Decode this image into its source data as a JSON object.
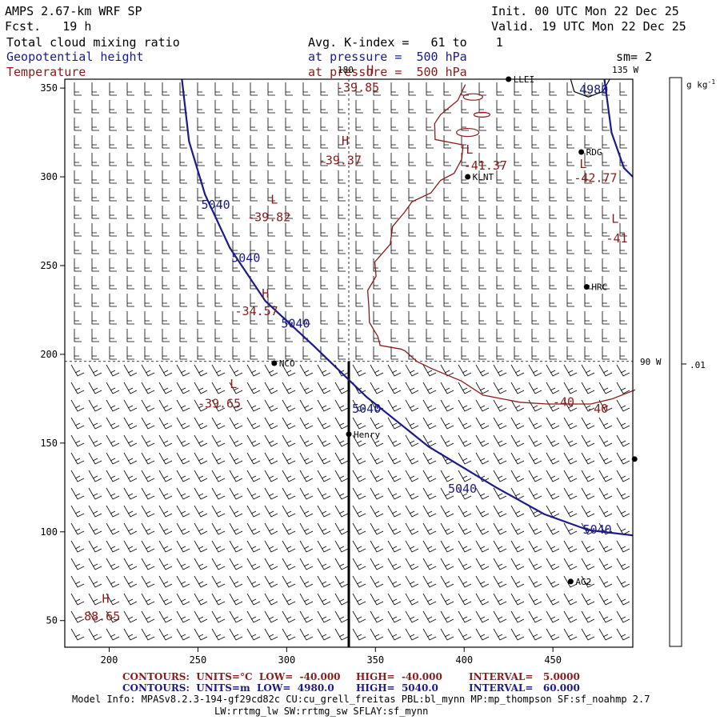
{
  "header": {
    "model_title": "AMPS 2.67-km WRF SP",
    "forecast": "Fcst.   19 h",
    "init": "Init. 00 UTC Mon 22 Dec 25",
    "valid": "Valid. 19 UTC Mon 22 Dec 25",
    "field1": "Total cloud mixing ratio",
    "field2": "Geopotential height",
    "field3": "Temperature",
    "avg_k": "Avg. K-index =   61 to    1",
    "pressure1": "at pressure =  500 hPa",
    "pressure2": "at pressure =  500 hPa",
    "sm": "sm= 2"
  },
  "colors": {
    "blue": "#1a1a8c",
    "red": "#8b1a1a",
    "black": "#000000"
  },
  "map": {
    "x_ticks": [
      "200",
      "250",
      "300",
      "350",
      "400",
      "450"
    ],
    "y_ticks": [
      "350",
      "300",
      "250",
      "200",
      "150",
      "100",
      "50"
    ],
    "lon_labels": {
      "top": "180",
      "right_top": "135 W",
      "right_mid": "90 W"
    },
    "stations": [
      {
        "name": "LLEI",
        "x": 425,
        "y": 355
      },
      {
        "name": "RDG",
        "x": 466,
        "y": 314
      },
      {
        "name": "KLNT",
        "x": 402,
        "y": 300
      },
      {
        "name": "HRC",
        "x": 469,
        "y": 238
      },
      {
        "name": "NCO",
        "x": 293,
        "y": 195
      },
      {
        "name": "Henry",
        "x": 335,
        "y": 155
      },
      {
        "name": "AG2",
        "x": 460,
        "y": 72
      },
      {
        "name": "",
        "x": 496,
        "y": 141
      }
    ],
    "height_labels": [
      {
        "text": "5040",
        "x": 260,
        "y": 282
      },
      {
        "text": "5040",
        "x": 277,
        "y": 252
      },
      {
        "text": "5040",
        "x": 305,
        "y": 215
      },
      {
        "text": "5040",
        "x": 345,
        "y": 167
      },
      {
        "text": "5040",
        "x": 399,
        "y": 122
      },
      {
        "text": "5040",
        "x": 475,
        "y": 99
      },
      {
        "text": "4980",
        "x": 473,
        "y": 347
      }
    ],
    "temp_labels": [
      {
        "text": "-39.85",
        "x": 340,
        "y": 348
      },
      {
        "text": "-39.37",
        "x": 330,
        "y": 307
      },
      {
        "text": "-41.37",
        "x": 412,
        "y": 304
      },
      {
        "text": "-42.77",
        "x": 474,
        "y": 297
      },
      {
        "text": "-39.82",
        "x": 290,
        "y": 275
      },
      {
        "text": "-41",
        "x": 486,
        "y": 263
      },
      {
        "text": "-34.57",
        "x": 283,
        "y": 222
      },
      {
        "text": "-39.65",
        "x": 262,
        "y": 170
      },
      {
        "text": "-40",
        "x": 456,
        "y": 171
      },
      {
        "text": "-40",
        "x": 475,
        "y": 167
      },
      {
        "text": "-88.65",
        "x": 194,
        "y": 50
      }
    ],
    "extrema_marks": [
      {
        "text": "H",
        "x": 347,
        "y": 358,
        "color": "red"
      },
      {
        "text": "H",
        "x": 333,
        "y": 318,
        "color": "red"
      },
      {
        "text": "L",
        "x": 403,
        "y": 313,
        "color": "red"
      },
      {
        "text": "L",
        "x": 467,
        "y": 305,
        "color": "red"
      },
      {
        "text": "L",
        "x": 293,
        "y": 285,
        "color": "red"
      },
      {
        "text": "L",
        "x": 485,
        "y": 274,
        "color": "red"
      },
      {
        "text": "H",
        "x": 288,
        "y": 232,
        "color": "red"
      },
      {
        "text": "L",
        "x": 270,
        "y": 181,
        "color": "red"
      },
      {
        "text": "H",
        "x": 198,
        "y": 60,
        "color": "red"
      }
    ]
  },
  "colorbar": {
    "unit": "g kg",
    "unit_sup": "-1",
    "tick": ".01"
  },
  "footer": {
    "temp_contours": "CONTOURS:  UNITS=°C  LOW=  -40.000",
    "temp_high": "HIGH=  -40.000",
    "temp_interval": "INTERVAL=   5.0000",
    "hgt_contours": "CONTOURS:  UNITS=m  LOW=  4980.0",
    "hgt_high": "HIGH=  5040.0",
    "hgt_interval": "INTERVAL=   60.000",
    "model_info": "Model Info: MPASv8.2.3-194-gf29cd82c CU:cu_grell_freitas PBL:bl_mynn MP:mp_thompson SF:sf_noahmp 2.7",
    "model_info2": "LW:rrtmg_lw SW:rrtmg_sw SFLAY:sf_mynn"
  }
}
